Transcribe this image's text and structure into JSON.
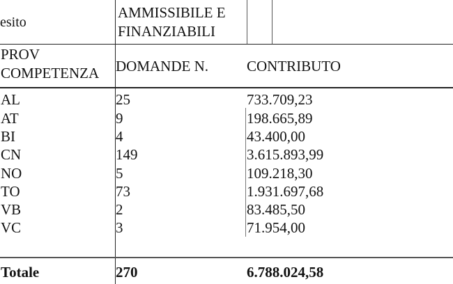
{
  "header": {
    "esito_label": "esito",
    "esito_value_line1": "AMMISSIBILE E",
    "esito_value_line2": "FINANZIABILI",
    "col_prov_line1": "PROV",
    "col_prov_line2": "COMPETENZA",
    "col_domande": "DOMANDE N.",
    "col_contributo": "CONTRIBUTO"
  },
  "rows": [
    {
      "prov": "AL",
      "domande": "25",
      "contributo": "733.709,23"
    },
    {
      "prov": "AT",
      "domande": "9",
      "contributo": "198.665,89"
    },
    {
      "prov": "BI",
      "domande": "4",
      "contributo": "43.400,00"
    },
    {
      "prov": "CN",
      "domande": "149",
      "contributo": "3.615.893,99"
    },
    {
      "prov": "NO",
      "domande": "5",
      "contributo": "109.218,30"
    },
    {
      "prov": "TO",
      "domande": "73",
      "contributo": "1.931.697,68"
    },
    {
      "prov": "VB",
      "domande": "2",
      "contributo": "83.485,50"
    },
    {
      "prov": "VC",
      "domande": "3",
      "contributo": "71.954,00"
    }
  ],
  "total": {
    "label": "Totale",
    "domande": "270",
    "contributo": "6.788.024,58"
  }
}
